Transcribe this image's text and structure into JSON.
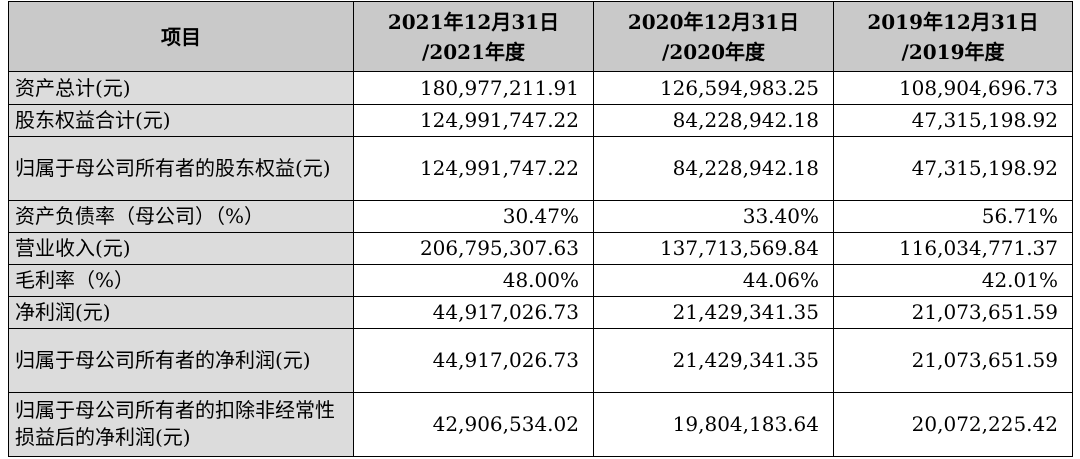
{
  "table": {
    "headers": [
      "项目",
      [
        "2021年12月31日",
        "/2021年度"
      ],
      [
        "2020年12月31日",
        "/2020年度"
      ],
      [
        "2019年12月31日",
        "/2019年度"
      ]
    ],
    "rows": [
      {
        "label": "资产总计(元)",
        "values": [
          "180,977,211.91",
          "126,594,983.25",
          "108,904,696.73"
        ]
      },
      {
        "label": "股东权益合计(元)",
        "values": [
          "124,991,747.22",
          "84,228,942.18",
          "47,315,198.92"
        ]
      },
      {
        "label": "归属于母公司所有者的股东权益(元)",
        "values": [
          "124,991,747.22",
          "84,228,942.18",
          "47,315,198.92"
        ]
      },
      {
        "label": "资产负债率（母公司）（%）",
        "values": [
          "30.47%",
          "33.40%",
          "56.71%"
        ]
      },
      {
        "label": "营业收入(元)",
        "values": [
          "206,795,307.63",
          "137,713,569.84",
          "116,034,771.37"
        ]
      },
      {
        "label": "毛利率（%）",
        "values": [
          "48.00%",
          "44.06%",
          "42.01%"
        ]
      },
      {
        "label": "净利润(元)",
        "values": [
          "44,917,026.73",
          "21,429,341.35",
          "21,073,651.59"
        ]
      },
      {
        "label": "归属于母公司所有者的净利润(元)",
        "values": [
          "44,917,026.73",
          "21,429,341.35",
          "21,073,651.59"
        ]
      },
      {
        "label": "归属于母公司所有者的扣除非经常性损益后的净利润(元)",
        "values": [
          "42,906,534.02",
          "19,804,183.64",
          "20,072,225.42"
        ]
      }
    ]
  }
}
